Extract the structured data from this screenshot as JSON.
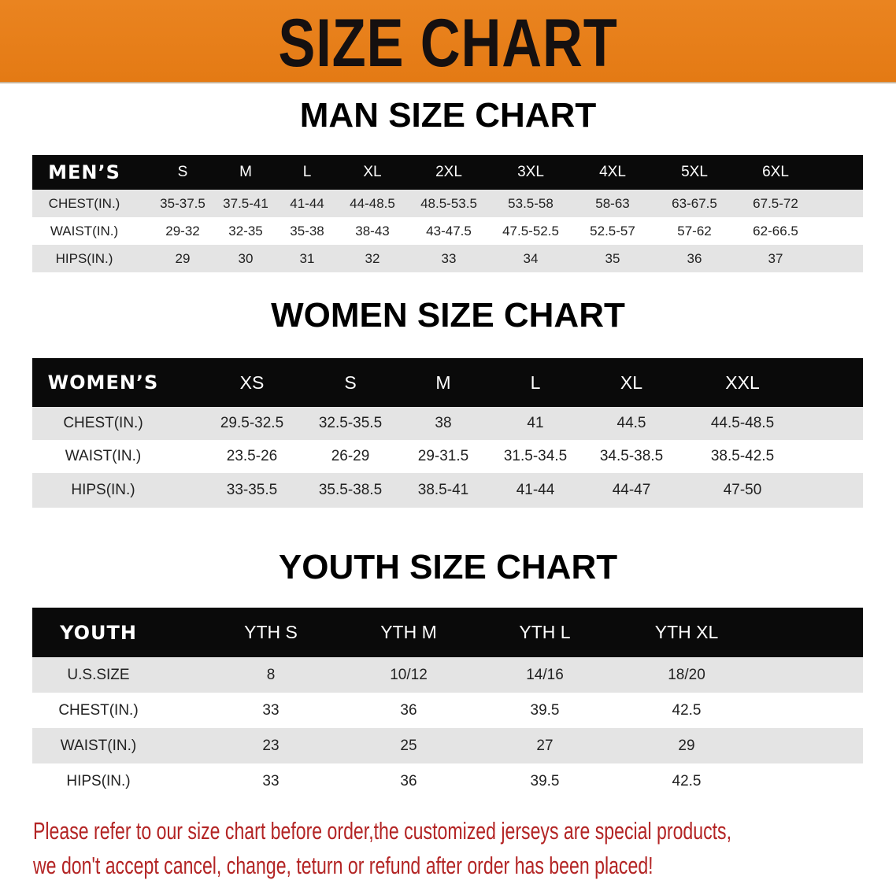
{
  "banner": {
    "title": "SIZE CHART",
    "color": "#e8801c"
  },
  "men": {
    "title": "MAN SIZE CHART",
    "header": [
      "MEN’S",
      "S",
      "M",
      "L",
      "XL",
      "2XL",
      "3XL",
      "4XL",
      "5XL",
      "6XL"
    ],
    "rows": [
      [
        "CHEST(IN.)",
        "35-37.5",
        "37.5-41",
        "41-44",
        "44-48.5",
        "48.5-53.5",
        "53.5-58",
        "58-63",
        "63-67.5",
        "67.5-72"
      ],
      [
        "WAIST(IN.)",
        "29-32",
        "32-35",
        "35-38",
        "38-43",
        "43-47.5",
        "47.5-52.5",
        "52.5-57",
        "57-62",
        "62-66.5"
      ],
      [
        "HIPS(IN.)",
        "29",
        "30",
        "31",
        "32",
        "33",
        "34",
        "35",
        "36",
        "37"
      ]
    ]
  },
  "women": {
    "title": "WOMEN SIZE CHART",
    "header": [
      "WOMEN’S",
      "XS",
      "S",
      "M",
      "L",
      "XL",
      "XXL"
    ],
    "rows": [
      [
        "CHEST(IN.)",
        "29.5-32.5",
        "32.5-35.5",
        "38",
        "41",
        "44.5",
        "44.5-48.5"
      ],
      [
        "WAIST(IN.)",
        "23.5-26",
        "26-29",
        "29-31.5",
        "31.5-34.5",
        "34.5-38.5",
        "38.5-42.5"
      ],
      [
        "HIPS(IN.)",
        "33-35.5",
        "35.5-38.5",
        "38.5-41",
        "41-44",
        "44-47",
        "47-50"
      ]
    ]
  },
  "youth": {
    "title": "YOUTH SIZE CHART",
    "header": [
      "YOUTH",
      "YTH S",
      "YTH M",
      "YTH L",
      "YTH XL"
    ],
    "rows": [
      [
        "U.S.SIZE",
        "8",
        "10/12",
        "14/16",
        "18/20"
      ],
      [
        "CHEST(IN.)",
        "33",
        "36",
        "39.5",
        "42.5"
      ],
      [
        "WAIST(IN.)",
        "23",
        "25",
        "27",
        "29"
      ],
      [
        "HIPS(IN.)",
        "33",
        "36",
        "39.5",
        "42.5"
      ]
    ]
  },
  "footer": {
    "line1": "Please refer to our size chart before order,the customized jerseys are special products,",
    "line2": "we don't accept cancel, change, teturn or refund after order has been placed!",
    "color": "#b32424"
  }
}
